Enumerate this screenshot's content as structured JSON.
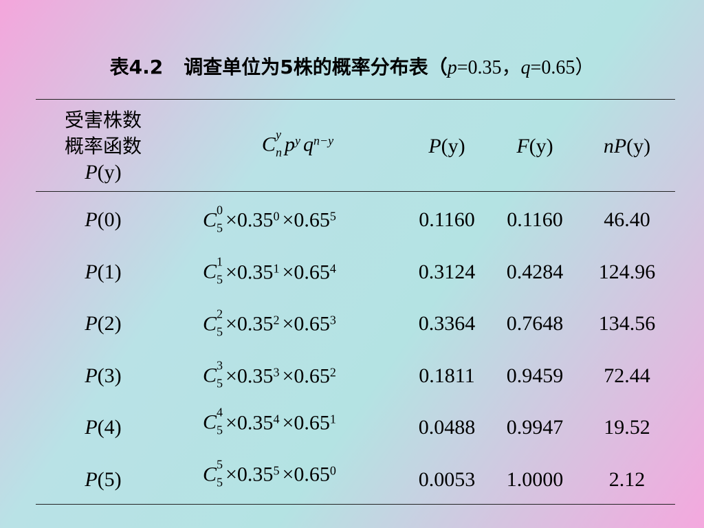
{
  "title": [
    "表4.2",
    "调查单位为5株的概率分布表（",
    "p",
    "=0.35，",
    "q",
    "=0.65）"
  ],
  "table": {
    "header": {
      "row_head": [
        "受害株数",
        "概率函数",
        {
          "fn": "P",
          "arg": "(y)"
        }
      ],
      "formula": [
        {
          "text": "C",
          "sup": "y",
          "sub": "n"
        },
        {
          "text": "p",
          "sup": "y"
        },
        {
          "text": "q",
          "sup": "n−y"
        }
      ],
      "columns": [
        {
          "fn": "P",
          "arg": "(y)"
        },
        {
          "fn": "F",
          "arg": "(y)"
        },
        {
          "fn": "nP",
          "arg": "(y)"
        }
      ]
    },
    "rows": [
      {
        "label": {
          "fn": "P",
          "arg": "(0)"
        },
        "formula": [
          {
            "text": "C",
            "sup": "0",
            "sub": "5"
          },
          {
            "text": "×0.35",
            "sup": "0"
          },
          {
            "text": "×0.65",
            "sup": "5"
          }
        ],
        "values": [
          "0.1160",
          "0.1160",
          "46.40"
        ]
      },
      {
        "label": {
          "fn": "P",
          "arg": "(1)"
        },
        "formula": [
          {
            "text": "C",
            "sup": "1",
            "sub": "5"
          },
          {
            "text": "×0.35",
            "sup": "1"
          },
          {
            "text": "×0.65",
            "sup": "4"
          }
        ],
        "values": [
          "0.3124",
          "0.4284",
          "124.96"
        ]
      },
      {
        "label": {
          "fn": "P",
          "arg": "(2)"
        },
        "formula": [
          {
            "text": "C",
            "sup": "2",
            "sub": "5"
          },
          {
            "text": "×0.35",
            "sup": "2"
          },
          {
            "text": "×0.65",
            "sup": "3"
          }
        ],
        "values": [
          "0.3364",
          "0.7648",
          "134.56"
        ]
      },
      {
        "label": {
          "fn": "P",
          "arg": "(3)"
        },
        "formula": [
          {
            "text": "C",
            "sup": "3",
            "sub": "5"
          },
          {
            "text": "×0.35",
            "sup": "3"
          },
          {
            "text": "×0.65",
            "sup": "2"
          }
        ],
        "values": [
          "0.1811",
          "0.9459",
          "72.44"
        ]
      },
      {
        "label": {
          "fn": "P",
          "arg": "(4)"
        },
        "formula": [
          {
            "text": "C",
            "sup": "4",
            "sub": "5"
          },
          {
            "text": "×0.35",
            "sup": "4"
          },
          {
            "text": "×0.65",
            "sup": "1"
          }
        ],
        "values": [
          "0.0488",
          "0.9947",
          "19.52"
        ]
      },
      {
        "label": {
          "fn": "P",
          "arg": "(5)"
        },
        "formula": [
          {
            "text": "C",
            "sup": "5",
            "sub": "5"
          },
          {
            "text": "×0.35",
            "sup": "5"
          },
          {
            "text": "×0.65",
            "sup": "0"
          }
        ],
        "values": [
          "0.0053",
          "1.0000",
          "2.12"
        ]
      }
    ]
  }
}
